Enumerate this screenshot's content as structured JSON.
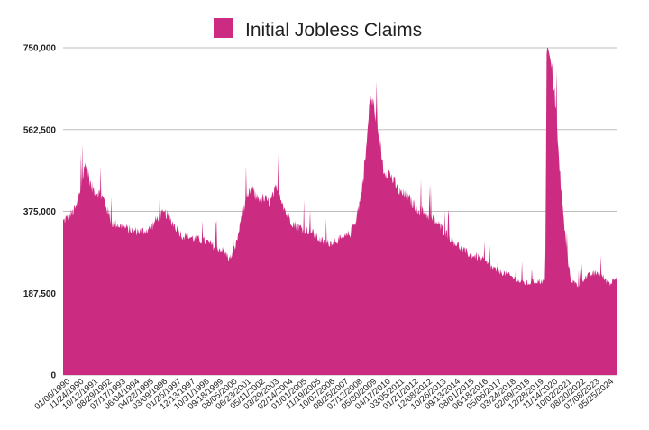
{
  "chart_data": {
    "type": "area",
    "title": "",
    "xlabel": "",
    "ylabel": "",
    "color": "#CB2C81",
    "legend": {
      "position": "top-center",
      "label": "Initial Jobless Claims"
    },
    "grid": true,
    "ylim": [
      0,
      750000
    ],
    "y_ticks": [
      "0",
      "187,500",
      "375,000",
      "562,500",
      "750,000"
    ],
    "x_ticks": [
      "01/06/1990",
      "11/24/1990",
      "10/12/1991",
      "08/29/1992",
      "07/17/1993",
      "06/04/1994",
      "04/22/1995",
      "03/09/1996",
      "01/25/1997",
      "12/13/1997",
      "10/31/1998",
      "09/18/1999",
      "08/05/2000",
      "06/23/2001",
      "05/11/2002",
      "03/29/2003",
      "02/14/2004",
      "01/01/2005",
      "11/19/2005",
      "10/07/2006",
      "08/25/2007",
      "07/12/2008",
      "05/30/2009",
      "04/17/2010",
      "03/05/2011",
      "01/21/2012",
      "12/08/2012",
      "10/26/2013",
      "09/13/2014",
      "08/01/2015",
      "06/18/2016",
      "05/06/2017",
      "03/24/2018",
      "02/09/2019",
      "12/28/2019",
      "11/14/2020",
      "10/02/2021",
      "08/20/2022",
      "07/08/2023",
      "05/25/2024"
    ],
    "series": [
      {
        "name": "Initial Jobless Claims",
        "x": [
          "1990-01",
          "1990-06",
          "1990-11",
          "1991-03",
          "1991-06",
          "1991-10",
          "1992-03",
          "1992-08",
          "1993-01",
          "1993-06",
          "1994-01",
          "1994-06",
          "1995-01",
          "1995-06",
          "1996-01",
          "1996-06",
          "1996-12",
          "1997-06",
          "1998-01",
          "1998-06",
          "1999-01",
          "1999-06",
          "2000-01",
          "2000-06",
          "2000-11",
          "2001-03",
          "2001-06",
          "2001-10",
          "2002-01",
          "2002-06",
          "2002-12",
          "2003-04",
          "2003-08",
          "2003-12",
          "2004-06",
          "2005-01",
          "2005-06",
          "2005-10",
          "2006-01",
          "2006-06",
          "2007-01",
          "2007-06",
          "2007-12",
          "2008-04",
          "2008-08",
          "2008-12",
          "2009-03",
          "2009-06",
          "2009-09",
          "2010-01",
          "2010-06",
          "2010-12",
          "2011-06",
          "2012-01",
          "2012-06",
          "2013-01",
          "2013-06",
          "2014-01",
          "2014-06",
          "2015-01",
          "2015-06",
          "2016-01",
          "2016-06",
          "2017-01",
          "2017-06",
          "2018-01",
          "2018-06",
          "2019-01",
          "2019-06",
          "2019-12",
          "2020-02",
          "2020-03",
          "2020-04",
          "2020-06",
          "2020-09",
          "2020-12",
          "2021-03",
          "2021-06",
          "2021-09",
          "2021-12",
          "2022-03",
          "2022-06",
          "2022-12",
          "2023-06",
          "2023-12",
          "2024-03",
          "2024-06",
          "2024-08"
        ],
        "values": [
          352000,
          365000,
          385000,
          440000,
          490000,
          430000,
          420000,
          400000,
          350000,
          345000,
          335000,
          330000,
          330000,
          335000,
          365000,
          370000,
          345000,
          320000,
          315000,
          310000,
          305000,
          295000,
          285000,
          265000,
          305000,
          370000,
          395000,
          430000,
          410000,
          405000,
          395000,
          425000,
          410000,
          370000,
          345000,
          335000,
          330000,
          320000,
          310000,
          300000,
          310000,
          310000,
          325000,
          355000,
          410000,
          520000,
          640000,
          610000,
          560000,
          470000,
          460000,
          420000,
          410000,
          385000,
          375000,
          360000,
          345000,
          320000,
          305000,
          285000,
          275000,
          270000,
          255000,
          240000,
          235000,
          225000,
          215000,
          210000,
          215000,
          215000,
          212000,
          750000,
          750000,
          720000,
          650000,
          500000,
          380000,
          285000,
          220000,
          210000,
          205000,
          220000,
          230000,
          235000,
          215000,
          210000,
          225000,
          232000
        ]
      }
    ]
  }
}
